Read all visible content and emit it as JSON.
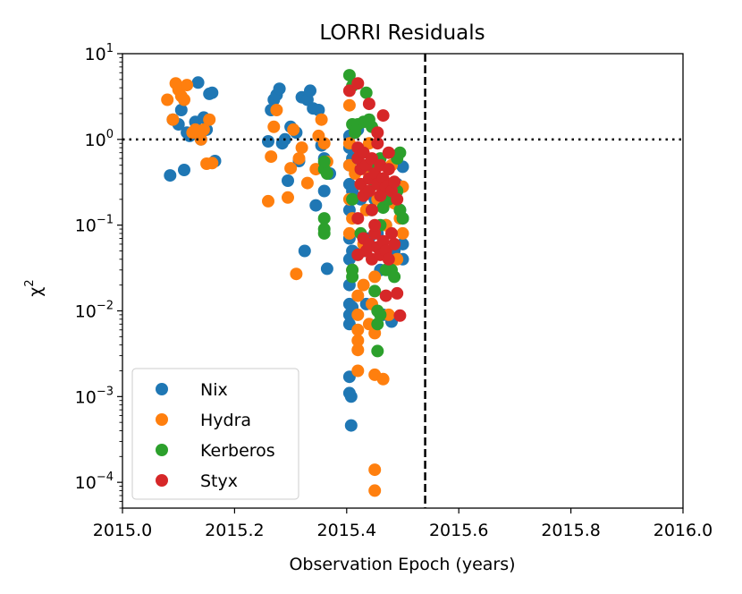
{
  "chart_data": {
    "type": "scatter",
    "title": "LORRI Residuals",
    "xlabel": "Observation Epoch (years)",
    "ylabel_base": "χ",
    "ylabel_sup": "2",
    "xlim": [
      2015.0,
      2016.0
    ],
    "ylim": [
      5e-05,
      10
    ],
    "yscale": "log",
    "x_ticks": [
      "2015.0",
      "2015.2",
      "2015.4",
      "2015.6",
      "2015.8",
      "2016.0"
    ],
    "y_ticks": [
      {
        "base": "10",
        "exp": "1"
      },
      {
        "base": "10",
        "exp": "0"
      },
      {
        "base": "10",
        "exp": "−1"
      },
      {
        "base": "10",
        "exp": "−2"
      },
      {
        "base": "10",
        "exp": "−3"
      },
      {
        "base": "10",
        "exp": "−4"
      }
    ],
    "ref_lines": {
      "horizontal_y": 1.0,
      "horizontal_style": "dotted",
      "vertical_x": 2015.54,
      "vertical_style": "dashed"
    },
    "legend_position": "lower-left",
    "series": [
      {
        "name": "Nix",
        "color": "#1f77b4",
        "points": [
          [
            2015.085,
            0.38
          ],
          [
            2015.09,
            1.7
          ],
          [
            2015.1,
            1.5
          ],
          [
            2015.105,
            2.2
          ],
          [
            2015.11,
            0.44
          ],
          [
            2015.115,
            1.2
          ],
          [
            2015.12,
            1.1
          ],
          [
            2015.13,
            1.6
          ],
          [
            2015.135,
            4.6
          ],
          [
            2015.14,
            1.0
          ],
          [
            2015.145,
            1.8
          ],
          [
            2015.15,
            1.3
          ],
          [
            2015.155,
            3.4
          ],
          [
            2015.16,
            3.5
          ],
          [
            2015.165,
            0.56
          ],
          [
            2015.26,
            0.95
          ],
          [
            2015.265,
            2.2
          ],
          [
            2015.27,
            2.9
          ],
          [
            2015.275,
            3.3
          ],
          [
            2015.28,
            3.9
          ],
          [
            2015.285,
            0.9
          ],
          [
            2015.29,
            1.0
          ],
          [
            2015.295,
            0.33
          ],
          [
            2015.3,
            1.4
          ],
          [
            2015.31,
            1.2
          ],
          [
            2015.315,
            0.56
          ],
          [
            2015.32,
            3.1
          ],
          [
            2015.325,
            0.05
          ],
          [
            2015.33,
            2.9
          ],
          [
            2015.335,
            3.7
          ],
          [
            2015.34,
            2.3
          ],
          [
            2015.345,
            0.17
          ],
          [
            2015.35,
            2.2
          ],
          [
            2015.355,
            0.85
          ],
          [
            2015.36,
            0.6
          ],
          [
            2015.365,
            0.031
          ],
          [
            2015.36,
            0.25
          ],
          [
            2015.37,
            0.4
          ],
          [
            2015.405,
            1.1
          ],
          [
            2015.405,
            0.8
          ],
          [
            2015.405,
            0.5
          ],
          [
            2015.405,
            0.3
          ],
          [
            2015.405,
            0.15
          ],
          [
            2015.405,
            0.07
          ],
          [
            2015.405,
            0.04
          ],
          [
            2015.405,
            0.02
          ],
          [
            2015.405,
            0.012
          ],
          [
            2015.405,
            0.009
          ],
          [
            2015.405,
            0.007
          ],
          [
            2015.405,
            0.0017
          ],
          [
            2015.405,
            0.0011
          ],
          [
            2015.408,
            0.001
          ],
          [
            2015.408,
            0.00046
          ],
          [
            2015.41,
            0.6
          ],
          [
            2015.41,
            0.25
          ],
          [
            2015.41,
            0.05
          ],
          [
            2015.41,
            0.011
          ],
          [
            2015.42,
            1.3
          ],
          [
            2015.42,
            0.6
          ],
          [
            2015.425,
            0.2
          ],
          [
            2015.43,
            0.05
          ],
          [
            2015.435,
            0.012
          ],
          [
            2015.44,
            0.07
          ],
          [
            2015.45,
            0.2
          ],
          [
            2015.455,
            0.08
          ],
          [
            2015.46,
            0.03
          ],
          [
            2015.465,
            0.009
          ],
          [
            2015.47,
            0.1
          ],
          [
            2015.475,
            0.03
          ],
          [
            2015.48,
            0.0075
          ],
          [
            2015.48,
            0.2
          ],
          [
            2015.485,
            0.05
          ],
          [
            2015.49,
            0.3
          ],
          [
            2015.495,
            0.15
          ],
          [
            2015.5,
            0.48
          ],
          [
            2015.5,
            0.12
          ],
          [
            2015.5,
            0.04
          ],
          [
            2015.5,
            0.06
          ]
        ]
      },
      {
        "name": "Hydra",
        "color": "#ff7f0e",
        "points": [
          [
            2015.08,
            2.9
          ],
          [
            2015.09,
            1.7
          ],
          [
            2015.095,
            4.5
          ],
          [
            2015.1,
            3.8
          ],
          [
            2015.105,
            3.2
          ],
          [
            2015.11,
            2.9
          ],
          [
            2015.115,
            4.3
          ],
          [
            2015.125,
            1.2
          ],
          [
            2015.13,
            1.3
          ],
          [
            2015.14,
            1.0
          ],
          [
            2015.145,
            1.3
          ],
          [
            2015.15,
            0.52
          ],
          [
            2015.155,
            1.7
          ],
          [
            2015.16,
            0.53
          ],
          [
            2015.26,
            0.19
          ],
          [
            2015.265,
            0.63
          ],
          [
            2015.27,
            1.4
          ],
          [
            2015.275,
            2.2
          ],
          [
            2015.295,
            0.21
          ],
          [
            2015.3,
            0.46
          ],
          [
            2015.305,
            1.3
          ],
          [
            2015.31,
            0.027
          ],
          [
            2015.315,
            0.6
          ],
          [
            2015.32,
            0.8
          ],
          [
            2015.33,
            0.31
          ],
          [
            2015.345,
            0.45
          ],
          [
            2015.35,
            1.1
          ],
          [
            2015.355,
            1.7
          ],
          [
            2015.36,
            0.9
          ],
          [
            2015.365,
            0.55
          ],
          [
            2015.405,
            2.5
          ],
          [
            2015.405,
            0.9
          ],
          [
            2015.405,
            0.5
          ],
          [
            2015.405,
            0.2
          ],
          [
            2015.405,
            0.08
          ],
          [
            2015.41,
            0.03
          ],
          [
            2015.41,
            0.12
          ],
          [
            2015.415,
            0.4
          ],
          [
            2015.42,
            0.015
          ],
          [
            2015.42,
            0.009
          ],
          [
            2015.42,
            0.006
          ],
          [
            2015.42,
            0.0045
          ],
          [
            2015.42,
            0.0035
          ],
          [
            2015.42,
            0.002
          ],
          [
            2015.425,
            0.3
          ],
          [
            2015.43,
            0.02
          ],
          [
            2015.43,
            0.06
          ],
          [
            2015.435,
            0.15
          ],
          [
            2015.44,
            0.4
          ],
          [
            2015.44,
            0.9
          ],
          [
            2015.445,
            0.012
          ],
          [
            2015.45,
            0.025
          ],
          [
            2015.45,
            0.0055
          ],
          [
            2015.45,
            0.0018
          ],
          [
            2015.45,
            0.00014
          ],
          [
            2015.45,
            8e-05
          ],
          [
            2015.455,
            0.2
          ],
          [
            2015.46,
            0.05
          ],
          [
            2015.465,
            0.0016
          ],
          [
            2015.47,
            0.1
          ],
          [
            2015.475,
            0.009
          ],
          [
            2015.48,
            0.5
          ],
          [
            2015.485,
            0.18
          ],
          [
            2015.49,
            0.04
          ],
          [
            2015.495,
            0.12
          ],
          [
            2015.5,
            0.08
          ],
          [
            2015.5,
            0.28
          ],
          [
            2015.44,
            0.007
          ]
        ]
      },
      {
        "name": "Kerberos",
        "color": "#2ca02c",
        "points": [
          [
            2015.36,
            0.45
          ],
          [
            2015.36,
            0.55
          ],
          [
            2015.365,
            0.4
          ],
          [
            2015.36,
            0.12
          ],
          [
            2015.36,
            0.09
          ],
          [
            2015.36,
            0.08
          ],
          [
            2015.405,
            5.6
          ],
          [
            2015.41,
            4.2
          ],
          [
            2015.41,
            1.5
          ],
          [
            2015.41,
            0.2
          ],
          [
            2015.41,
            0.03
          ],
          [
            2015.41,
            0.025
          ],
          [
            2015.415,
            1.2
          ],
          [
            2015.42,
            1.5
          ],
          [
            2015.42,
            0.6
          ],
          [
            2015.425,
            0.08
          ],
          [
            2015.43,
            1.6
          ],
          [
            2015.435,
            3.5
          ],
          [
            2015.44,
            1.7
          ],
          [
            2015.445,
            1.4
          ],
          [
            2015.44,
            0.5
          ],
          [
            2015.445,
            0.15
          ],
          [
            2015.45,
            0.3
          ],
          [
            2015.45,
            0.017
          ],
          [
            2015.455,
            0.01
          ],
          [
            2015.455,
            0.0034
          ],
          [
            2015.455,
            0.007
          ],
          [
            2015.46,
            0.1
          ],
          [
            2015.46,
            0.6
          ],
          [
            2015.465,
            0.16
          ],
          [
            2015.47,
            0.03
          ],
          [
            2015.475,
            0.2
          ],
          [
            2015.48,
            0.03
          ],
          [
            2015.485,
            0.025
          ],
          [
            2015.49,
            0.6
          ],
          [
            2015.49,
            0.25
          ],
          [
            2015.495,
            0.7
          ],
          [
            2015.495,
            0.15
          ],
          [
            2015.5,
            0.12
          ],
          [
            2015.46,
            0.009
          ]
        ]
      },
      {
        "name": "Styx",
        "color": "#d62728",
        "points": [
          [
            2015.405,
            3.7
          ],
          [
            2015.42,
            4.5
          ],
          [
            2015.44,
            2.6
          ],
          [
            2015.455,
            1.2
          ],
          [
            2015.465,
            1.9
          ],
          [
            2015.42,
            0.8
          ],
          [
            2015.42,
            0.6
          ],
          [
            2015.425,
            0.45
          ],
          [
            2015.425,
            0.3
          ],
          [
            2015.43,
            0.22
          ],
          [
            2015.43,
            0.7
          ],
          [
            2015.435,
            0.5
          ],
          [
            2015.44,
            0.35
          ],
          [
            2015.44,
            0.25
          ],
          [
            2015.445,
            0.15
          ],
          [
            2015.445,
            0.6
          ],
          [
            2015.45,
            0.4
          ],
          [
            2015.455,
            0.3
          ],
          [
            2015.46,
            0.22
          ],
          [
            2015.46,
            0.5
          ],
          [
            2015.465,
            0.35
          ],
          [
            2015.47,
            0.28
          ],
          [
            2015.475,
            0.7
          ],
          [
            2015.475,
            0.45
          ],
          [
            2015.48,
            0.25
          ],
          [
            2015.485,
            0.32
          ],
          [
            2015.49,
            0.2
          ],
          [
            2015.43,
            0.07
          ],
          [
            2015.435,
            0.05
          ],
          [
            2015.44,
            0.06
          ],
          [
            2015.445,
            0.04
          ],
          [
            2015.45,
            0.08
          ],
          [
            2015.455,
            0.055
          ],
          [
            2015.46,
            0.045
          ],
          [
            2015.465,
            0.065
          ],
          [
            2015.47,
            0.05
          ],
          [
            2015.475,
            0.04
          ],
          [
            2015.48,
            0.08
          ],
          [
            2015.42,
            0.045
          ],
          [
            2015.485,
            0.06
          ],
          [
            2015.47,
            0.015
          ],
          [
            2015.49,
            0.016
          ],
          [
            2015.495,
            0.0088
          ],
          [
            2015.42,
            0.12
          ],
          [
            2015.45,
            0.1
          ],
          [
            2015.455,
            0.9
          ]
        ]
      }
    ]
  }
}
